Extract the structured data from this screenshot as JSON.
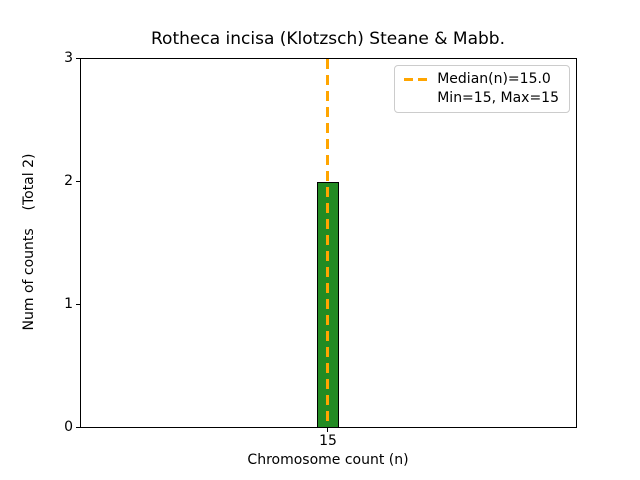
{
  "figure": {
    "background_color": "#ffffff"
  },
  "chart_data": {
    "type": "bar",
    "title": "Rotheca incisa (Klotzsch) Steane & Mabb.",
    "xlabel": "Chromosome count (n)",
    "ylabel": "Num of counts    (Total 2)",
    "categories": [
      "15"
    ],
    "values": [
      2
    ],
    "total_counts": 2,
    "ylim": [
      0,
      3
    ],
    "ytick_labels": [
      "0",
      "1",
      "2",
      "3"
    ],
    "xtick_labels": [
      "15"
    ],
    "median_n": 15.0,
    "min_n": 15,
    "max_n": 15,
    "bar_color": "#228B22",
    "bar_edge_color": "#000000",
    "median_line_color": "#FFA500",
    "median_line_style": "dashed",
    "grid": false,
    "legend": {
      "position": "upper right",
      "entries": [
        "Median(n)=15.0",
        "Min=15, Max=15"
      ]
    }
  }
}
